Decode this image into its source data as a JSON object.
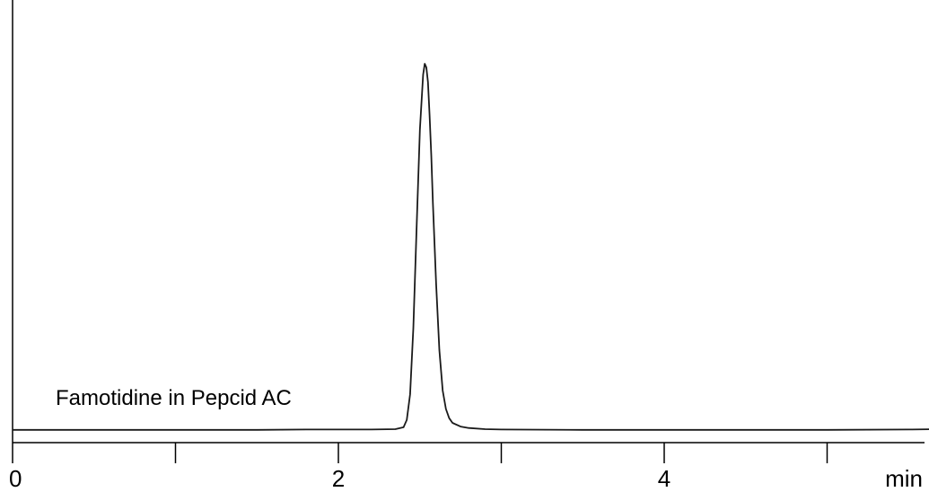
{
  "chart_data": {
    "type": "line",
    "title": "",
    "xlabel": "",
    "ylabel": "",
    "x_unit_label": "min",
    "xlim": [
      0,
      5.7
    ],
    "ylim": [
      0,
      1
    ],
    "x_ticks": [
      0,
      1,
      2,
      3,
      4,
      5
    ],
    "x_tick_labels": [
      {
        "x": 0,
        "label": "0"
      },
      {
        "x": 2,
        "label": "2"
      },
      {
        "x": 4,
        "label": "4"
      }
    ],
    "grid": false,
    "legend": "none",
    "annotations": [
      {
        "text": "Famotidine in Pepcid AC"
      }
    ],
    "series": [
      {
        "x": [
          0,
          0.5,
          1.0,
          1.5,
          1.8,
          2.0,
          2.2,
          2.35,
          2.4,
          2.42,
          2.44,
          2.46,
          2.48,
          2.5,
          2.52,
          2.53,
          2.54,
          2.55,
          2.56,
          2.57,
          2.58,
          2.6,
          2.62,
          2.64,
          2.66,
          2.68,
          2.7,
          2.75,
          2.8,
          2.9,
          3.0,
          3.5,
          4.0,
          4.5,
          5.0,
          5.5,
          5.7
        ],
        "y": [
          0.003,
          0.003,
          0.003,
          0.003,
          0.004,
          0.004,
          0.004,
          0.005,
          0.01,
          0.03,
          0.1,
          0.28,
          0.55,
          0.82,
          0.97,
          1.0,
          0.99,
          0.95,
          0.86,
          0.75,
          0.62,
          0.4,
          0.22,
          0.11,
          0.06,
          0.035,
          0.022,
          0.012,
          0.008,
          0.005,
          0.004,
          0.003,
          0.003,
          0.003,
          0.003,
          0.004,
          0.005
        ]
      }
    ],
    "colors": {
      "line": "#1a1a1a",
      "axis": "#000000"
    }
  }
}
